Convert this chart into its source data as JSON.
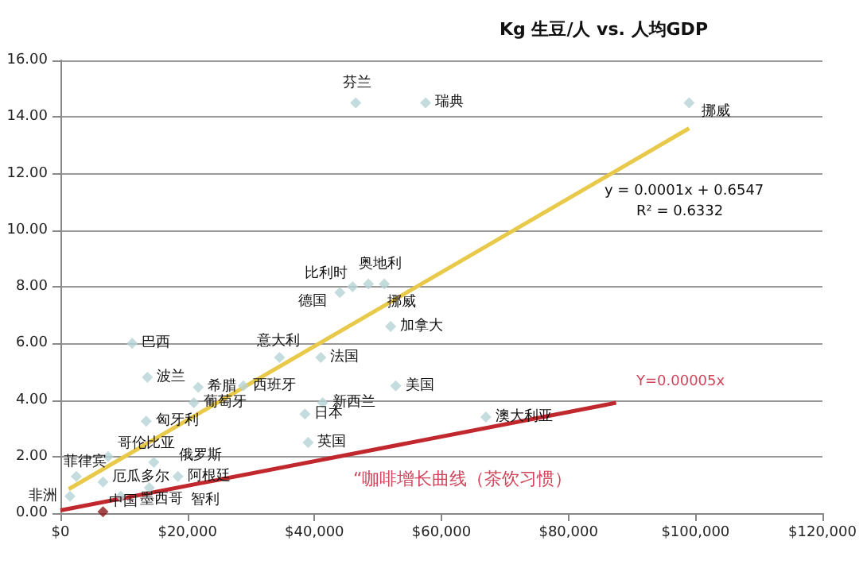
{
  "chart_data": {
    "type": "scatter",
    "title": "Kg 生豆/人 vs. 人均GDP",
    "xlim": [
      0,
      120000
    ],
    "xticks": [
      {
        "value": 0,
        "label": "$0"
      },
      {
        "value": 20000,
        "label": "$20,000"
      },
      {
        "value": 40000,
        "label": "$40,000"
      },
      {
        "value": 60000,
        "label": "$60,000"
      },
      {
        "value": 80000,
        "label": "$80,000"
      },
      {
        "value": 100000,
        "label": "$100,000"
      },
      {
        "value": 120000,
        "label": "$120,000"
      }
    ],
    "ylim": [
      0,
      16
    ],
    "yticks": [
      {
        "value": 0,
        "label": "0.00"
      },
      {
        "value": 2,
        "label": "2.00"
      },
      {
        "value": 4,
        "label": "4.00"
      },
      {
        "value": 6,
        "label": "6.00"
      },
      {
        "value": 8,
        "label": "8.00"
      },
      {
        "value": 10,
        "label": "10.00"
      },
      {
        "value": 12,
        "label": "12.00"
      },
      {
        "value": 14,
        "label": "14.00"
      },
      {
        "value": 16,
        "label": "16.00"
      }
    ],
    "grid": "y",
    "series": [
      {
        "marker": "diamond",
        "color": "#b7d3d6",
        "x": [
          46500,
          57500,
          99000,
          44000,
          46000,
          48500,
          51000,
          52000,
          11300,
          13700,
          21700,
          21000,
          13500,
          34500,
          28800,
          41000,
          52800,
          41300,
          38500,
          39000,
          67000,
          7500,
          14700,
          2500,
          6700,
          1500,
          18500,
          14000,
          9500
        ],
        "values": [
          14.5,
          14.5,
          14.5,
          7.8,
          8.0,
          8.1,
          8.1,
          6.6,
          6.0,
          4.8,
          4.45,
          3.9,
          3.25,
          5.5,
          4.5,
          5.5,
          4.5,
          3.9,
          3.5,
          2.5,
          3.4,
          2.0,
          1.8,
          1.3,
          1.1,
          0.6,
          1.3,
          0.9,
          0.6
        ]
      },
      {
        "marker": "diamond",
        "color": "#8b1a1a",
        "x": [
          6700
        ],
        "values": [
          0.05
        ]
      },
      {
        "type": "line",
        "color": "#e8c94a",
        "x": [
          1300,
          99000
        ],
        "values": [
          0.85,
          13.6
        ]
      },
      {
        "type": "line",
        "color": "#c0282d",
        "x": [
          0,
          87500
        ],
        "values": [
          0.1,
          3.9
        ]
      }
    ],
    "annotations": [
      "y = 0.0001x + 0.6547",
      "R² = 0.6332",
      "“咖啡增长曲线（茶饮习惯）",
      "Y=0.00005x",
      {
        "text": "芬兰",
        "x": 46500,
        "y": 14.5
      },
      {
        "text": "瑞典",
        "x": 57500,
        "y": 14.5
      },
      {
        "text": "挪威",
        "x": 99000,
        "y": 14.5
      },
      {
        "text": "德国",
        "x": 44000,
        "y": 7.8
      },
      {
        "text": "比利时",
        "x": 46000,
        "y": 8.0
      },
      {
        "text": "奥地利",
        "x": 48500,
        "y": 8.1
      },
      {
        "text": "挪威",
        "x": 51000,
        "y": 8.1
      },
      {
        "text": "加拿大",
        "x": 52000,
        "y": 6.6
      },
      {
        "text": "巴西",
        "x": 11300,
        "y": 6.0
      },
      {
        "text": "波兰",
        "x": 13700,
        "y": 4.8
      },
      {
        "text": "希腊",
        "x": 21700,
        "y": 4.45
      },
      {
        "text": "葡萄牙",
        "x": 21000,
        "y": 3.9
      },
      {
        "text": "匈牙利",
        "x": 13500,
        "y": 3.25
      },
      {
        "text": "意大利",
        "x": 34500,
        "y": 5.5
      },
      {
        "text": "西班牙",
        "x": 28800,
        "y": 4.5
      },
      {
        "text": "法国",
        "x": 41000,
        "y": 5.5
      },
      {
        "text": "美国",
        "x": 52800,
        "y": 4.5
      },
      {
        "text": "新西兰",
        "x": 41300,
        "y": 3.9
      },
      {
        "text": "日本",
        "x": 38500,
        "y": 3.5
      },
      {
        "text": "英国",
        "x": 39000,
        "y": 2.5
      },
      {
        "text": "澳大利亚",
        "x": 67000,
        "y": 3.4
      },
      {
        "text": "哥伦比亚",
        "x": 7500,
        "y": 2.0
      },
      {
        "text": "俄罗斯",
        "x": 14700,
        "y": 1.8
      },
      {
        "text": "菲律宾",
        "x": 2500,
        "y": 1.3
      },
      {
        "text": "厄瓜多尔",
        "x": 6700,
        "y": 1.1
      },
      {
        "text": "非洲",
        "x": 1500,
        "y": 0.6
      },
      {
        "text": "阿根廷",
        "x": 18500,
        "y": 1.3
      },
      {
        "text": "智利",
        "x": 14000,
        "y": 0.9
      },
      {
        "text": "墨西哥",
        "x": 9500,
        "y": 0.6
      },
      {
        "text": "中国",
        "x": 6700,
        "y": 0.05
      }
    ]
  }
}
